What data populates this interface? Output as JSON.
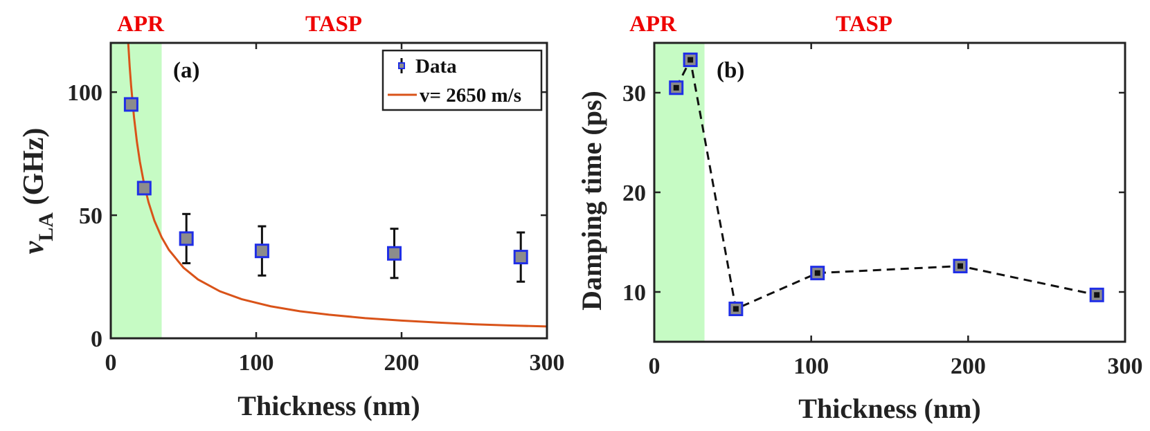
{
  "chart_data": [
    {
      "type": "scatter",
      "panel_label": "(a)",
      "xlabel": "Thickness (nm)",
      "ylabel_symbol": "ν",
      "ylabel_subscript": "LA",
      "ylabel_unit": "(GHz)",
      "xlim": [
        0,
        300
      ],
      "ylim": [
        0,
        120
      ],
      "xticks": [
        "0",
        "100",
        "200",
        "300"
      ],
      "yticks": [
        "0",
        "50",
        "100"
      ],
      "region_labels": {
        "left": "APR",
        "right": "TASP"
      },
      "shaded_region_x": [
        0,
        35
      ],
      "shaded_color": "#c6fbc4",
      "legend_position": "top-right",
      "series": [
        {
          "name": "Data",
          "kind": "errorbar-markers",
          "x": [
            14,
            23,
            52,
            104,
            195,
            282
          ],
          "y": [
            95,
            61,
            40.5,
            35.5,
            34.5,
            33
          ],
          "err": [
            0,
            0,
            10,
            10,
            10,
            10
          ],
          "marker_edge": "#1f2ee6",
          "marker_fill": "#8c8c8c"
        },
        {
          "name": "v= 2650 m/s",
          "kind": "curve",
          "x": [
            12,
            13,
            14,
            16,
            18,
            20,
            23,
            26,
            30,
            35,
            40,
            50,
            60,
            75,
            90,
            110,
            130,
            150,
            175,
            200,
            225,
            250,
            275,
            300
          ],
          "y": [
            120,
            110.4,
            102.5,
            89.7,
            79.7,
            71.8,
            62.4,
            55.2,
            47.8,
            41,
            35.9,
            28.7,
            23.9,
            19.1,
            15.9,
            13,
            11,
            9.6,
            8.2,
            7.2,
            6.4,
            5.7,
            5.2,
            4.8
          ],
          "color": "#d95319"
        }
      ]
    },
    {
      "type": "line",
      "panel_label": "(b)",
      "xlabel": "Thickness (nm)",
      "ylabel": "Damping time (ps)",
      "xlim": [
        0,
        300
      ],
      "ylim": [
        5,
        35
      ],
      "xticks": [
        "0",
        "100",
        "200",
        "300"
      ],
      "yticks": [
        "10",
        "20",
        "30"
      ],
      "region_labels": {
        "left": "APR",
        "right": "TASP"
      },
      "shaded_region_x": [
        0,
        32
      ],
      "shaded_color": "#c6fbc4",
      "series": [
        {
          "kind": "dashed-line-markers",
          "x": [
            14,
            23,
            52,
            104,
            195,
            282
          ],
          "y": [
            30.5,
            33.3,
            8.3,
            11.9,
            12.6,
            9.7
          ],
          "marker_edge": "#1f2ee6",
          "marker_fill": "#111111",
          "line_color": "#111111"
        }
      ]
    }
  ]
}
